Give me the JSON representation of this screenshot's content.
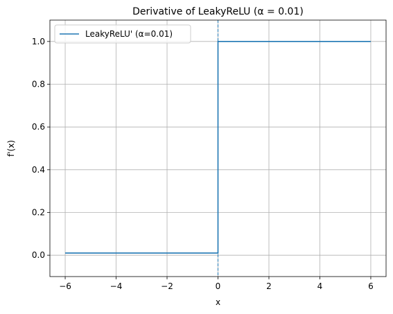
{
  "chart_data": {
    "type": "line",
    "title": "Derivative of LeakyReLU (α = 0.01)",
    "xlabel": "x",
    "ylabel": "f'(x)",
    "xlim": [
      -6.6,
      6.6
    ],
    "ylim": [
      -0.1,
      1.1
    ],
    "xticks": [
      -6,
      -4,
      -2,
      0,
      2,
      4,
      6
    ],
    "xtick_labels": [
      "−6",
      "−4",
      "−2",
      "0",
      "2",
      "4",
      "6"
    ],
    "yticks": [
      0.0,
      0.2,
      0.4,
      0.6,
      0.8,
      1.0
    ],
    "ytick_labels": [
      "0.0",
      "0.2",
      "0.4",
      "0.6",
      "0.8",
      "1.0"
    ],
    "grid": true,
    "legend_position": "upper-left",
    "series": [
      {
        "name": "LeakyReLU' (α=0.01)",
        "color": "#1f77b4",
        "style": "solid",
        "x": [
          -6,
          0,
          0,
          6
        ],
        "y": [
          0.01,
          0.01,
          1.0,
          1.0
        ]
      }
    ],
    "annotations": [
      {
        "type": "vline",
        "x": 0,
        "style": "dashed",
        "color": "#1f77b4"
      }
    ]
  }
}
